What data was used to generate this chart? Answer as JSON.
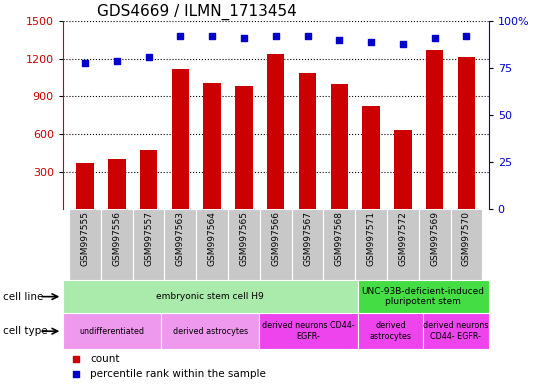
{
  "title": "GDS4669 / ILMN_1713454",
  "samples": [
    "GSM997555",
    "GSM997556",
    "GSM997557",
    "GSM997563",
    "GSM997564",
    "GSM997565",
    "GSM997566",
    "GSM997567",
    "GSM997568",
    "GSM997571",
    "GSM997572",
    "GSM997569",
    "GSM997570"
  ],
  "bar_values": [
    370,
    400,
    470,
    1120,
    1010,
    980,
    1240,
    1090,
    1000,
    820,
    630,
    1270,
    1210
  ],
  "percentile_values": [
    78,
    79,
    81,
    92,
    92,
    91,
    92,
    92,
    90,
    89,
    88,
    91,
    92
  ],
  "bar_color": "#cc0000",
  "dot_color": "#0000cc",
  "ylim_left": [
    0,
    1500
  ],
  "ylim_right": [
    0,
    100
  ],
  "yticks_left": [
    300,
    600,
    900,
    1200,
    1500
  ],
  "yticks_right": [
    0,
    25,
    50,
    75,
    100
  ],
  "cell_line_groups": [
    {
      "label": "embryonic stem cell H9",
      "start": 0,
      "end": 9,
      "color": "#aaeaaa"
    },
    {
      "label": "UNC-93B-deficient-induced\npluripotent stem",
      "start": 9,
      "end": 13,
      "color": "#44dd44"
    }
  ],
  "cell_type_groups": [
    {
      "label": "undifferentiated",
      "start": 0,
      "end": 3,
      "color": "#ee99ee"
    },
    {
      "label": "derived astrocytes",
      "start": 3,
      "end": 6,
      "color": "#ee99ee"
    },
    {
      "label": "derived neurons CD44-\nEGFR-",
      "start": 6,
      "end": 9,
      "color": "#ee44ee"
    },
    {
      "label": "derived\nastrocytes",
      "start": 9,
      "end": 11,
      "color": "#ee44ee"
    },
    {
      "label": "derived neurons\nCD44- EGFR-",
      "start": 11,
      "end": 13,
      "color": "#ee44ee"
    }
  ],
  "bar_width": 0.55,
  "label_bg_color": "#c8c8c8",
  "label_border_color": "#ffffff"
}
